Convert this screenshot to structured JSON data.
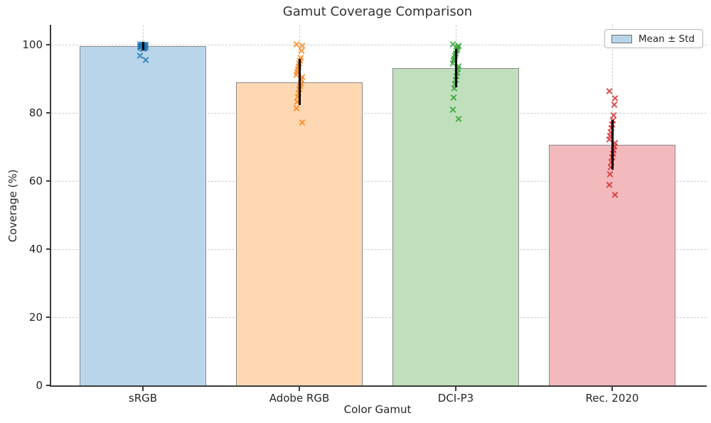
{
  "header": {
    "title": "Gamut Coverage Comparison"
  },
  "axes": {
    "xlabel": "Color Gamut",
    "ylabel": "Coverage (%)"
  },
  "legend": {
    "label": "Mean ± Std",
    "swatch_fill": "#b9d5ea",
    "swatch_edge": "#6f6f6f",
    "position": "upper right"
  },
  "chart_data": {
    "type": "bar",
    "title": "Gamut Coverage Comparison",
    "xlabel": "Color Gamut",
    "ylabel": "Coverage (%)",
    "categories": [
      "sRGB",
      "Adobe RGB",
      "DCI-P3",
      "Rec. 2020"
    ],
    "series": [
      {
        "name": "Mean ± Std",
        "values": [
          99.5,
          89.0,
          93.1,
          70.6
        ]
      }
    ],
    "error_std": [
      1.3,
      6.7,
      5.6,
      7.3
    ],
    "scatter_points": [
      [
        100.0,
        99.9,
        99.9,
        99.8,
        99.8,
        99.7,
        99.6,
        99.5,
        99.5,
        99.4,
        99.3,
        99.2,
        99.0,
        98.9,
        98.8,
        100.0,
        99.7,
        99.1,
        96.7,
        95.4
      ],
      [
        100.0,
        99.6,
        98.2,
        96.1,
        95.3,
        94.4,
        93.6,
        92.8,
        92.0,
        91.2,
        90.4,
        89.6,
        88.7,
        87.8,
        86.9,
        85.8,
        84.6,
        83.2,
        81.4,
        77.2
      ],
      [
        100.0,
        99.6,
        99.2,
        98.7,
        98.1,
        97.4,
        96.7,
        96.0,
        95.2,
        94.4,
        93.6,
        92.7,
        91.8,
        90.8,
        89.7,
        88.5,
        87.2,
        84.5,
        81.0,
        78.2
      ],
      [
        86.4,
        84.2,
        82.3,
        79.3,
        77.8,
        76.6,
        75.4,
        74.3,
        73.2,
        72.1,
        71.1,
        70.1,
        69.1,
        68.0,
        66.9,
        65.6,
        64.1,
        62.0,
        58.9,
        55.9
      ]
    ],
    "yticks": [
      0,
      20,
      40,
      60,
      80,
      100
    ],
    "ylim": [
      0,
      105.8
    ],
    "grid": {
      "style": "dashed",
      "axes": "both"
    },
    "legend_position": "upper right",
    "bar_fill_colors": [
      "#b9d5ea",
      "#fdd8b2",
      "#c0e0bd",
      "#f2babd"
    ],
    "bar_edge_color": "#8a8a8a",
    "point_colors": [
      "#1f77b4",
      "#ff7f0e",
      "#2ca02c",
      "#d62728"
    ],
    "error_color": "#000000"
  }
}
